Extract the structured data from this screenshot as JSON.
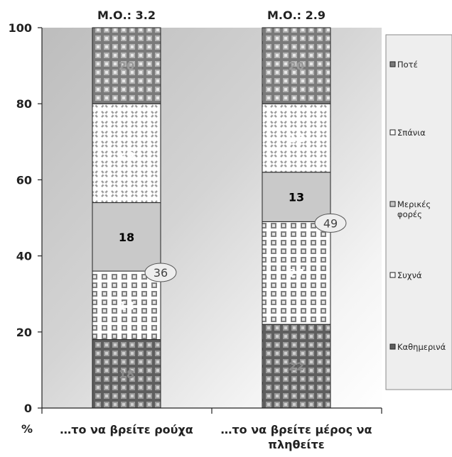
{
  "chart_data": {
    "type": "bar",
    "stacked": true,
    "unit_label": "%",
    "categories": [
      "…το να βρείτε ρούχα",
      "…το να βρείτε μέρος να πληθείτε"
    ],
    "means": [
      "Μ.Ο.: 3.2",
      "Μ.Ο.: 2.9"
    ],
    "ylim": [
      0,
      100
    ],
    "yticks": [
      0,
      20,
      40,
      60,
      80,
      100
    ],
    "series": [
      {
        "name": "Καθημερινά",
        "values": [
          18,
          22
        ]
      },
      {
        "name": "Συχνά",
        "values": [
          18,
          27
        ]
      },
      {
        "name": "Μερικές φορές",
        "values": [
          18,
          13
        ]
      },
      {
        "name": "Σπάνια",
        "values": [
          26,
          18
        ]
      },
      {
        "name": "Ποτέ",
        "values": [
          20,
          20
        ]
      }
    ],
    "cumulative_callouts": [
      "36",
      "49"
    ],
    "legend_position": "right",
    "colors": {
      "Καθημερινά": "#6f6f6f",
      "Συχνά": "#ffffff",
      "Μερικές φορές": "#c8c8c8",
      "Σπάνια": "#ffffff",
      "Ποτέ": "#8f8f8f"
    }
  }
}
